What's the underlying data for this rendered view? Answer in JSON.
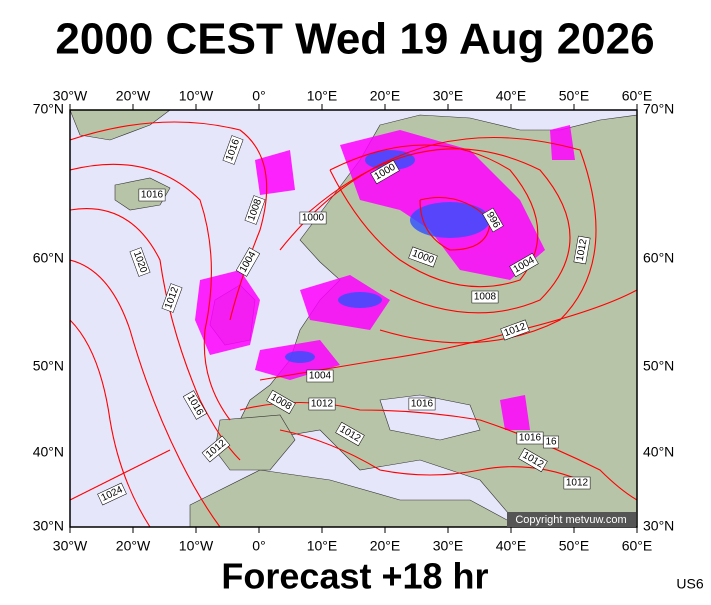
{
  "header": {
    "title": "2000 CEST Wed 19 Aug 2026"
  },
  "map": {
    "lon_labels": [
      "30°W",
      "20°W",
      "10°W",
      "0°",
      "10°E",
      "20°E",
      "30°E",
      "40°E",
      "50°E",
      "60°E"
    ],
    "lat_labels": [
      "70°N",
      "60°N",
      "50°N",
      "40°N",
      "30°N"
    ],
    "isobar_labels": [
      "1016",
      "1016",
      "1008",
      "1000",
      "1000",
      "1004",
      "996",
      "1004",
      "1012",
      "1020",
      "1012",
      "1000",
      "1008",
      "1012",
      "1004",
      "1008",
      "1012",
      "1016",
      "1016",
      "1012",
      "1016",
      "16",
      "1012",
      "1012",
      "1012",
      "1024"
    ],
    "copyright": "Copyright metvuw.com"
  },
  "footer": {
    "forecast": "Forecast +18 hr",
    "code": "US6"
  }
}
